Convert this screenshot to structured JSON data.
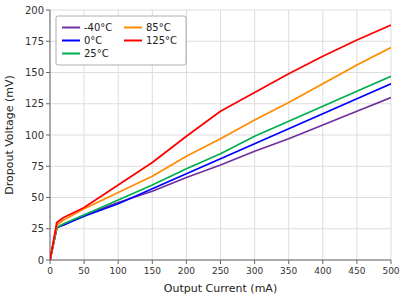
{
  "chart_data": {
    "type": "line",
    "xlabel": "Output Current (mA)",
    "ylabel": "Dropout Voltage (mV)",
    "xlim": [
      0,
      500
    ],
    "ylim": [
      0,
      200
    ],
    "xticks": [
      0,
      50,
      100,
      150,
      200,
      250,
      300,
      350,
      400,
      450,
      500
    ],
    "yticks": [
      0,
      25,
      50,
      75,
      100,
      125,
      150,
      175,
      200
    ],
    "grid": true,
    "legend": "upper left",
    "x": [
      0,
      10,
      20,
      50,
      100,
      150,
      200,
      250,
      300,
      350,
      400,
      450,
      500
    ],
    "series": [
      {
        "name": "-40°C",
        "color": "#7030A0",
        "values": [
          0,
          26,
          28,
          36,
          46,
          55,
          66,
          76,
          87,
          97,
          108,
          119,
          130
        ]
      },
      {
        "name": "0°C",
        "color": "#0000FF",
        "values": [
          0,
          26,
          28,
          35,
          45,
          57,
          69,
          81,
          93,
          105,
          117,
          129,
          141
        ]
      },
      {
        "name": "25°C",
        "color": "#00B050",
        "values": [
          0,
          26,
          29,
          36,
          48,
          60,
          73,
          85,
          99,
          111,
          123,
          135,
          147
        ]
      },
      {
        "name": "85°C",
        "color": "#FF8C00",
        "values": [
          0,
          28,
          32,
          41,
          54,
          67,
          83,
          97,
          112,
          126,
          141,
          156,
          170
        ]
      },
      {
        "name": "125°C",
        "color": "#FF0000",
        "values": [
          0,
          30,
          34,
          42,
          60,
          78,
          99,
          119,
          134,
          149,
          163,
          176,
          188
        ]
      }
    ]
  }
}
